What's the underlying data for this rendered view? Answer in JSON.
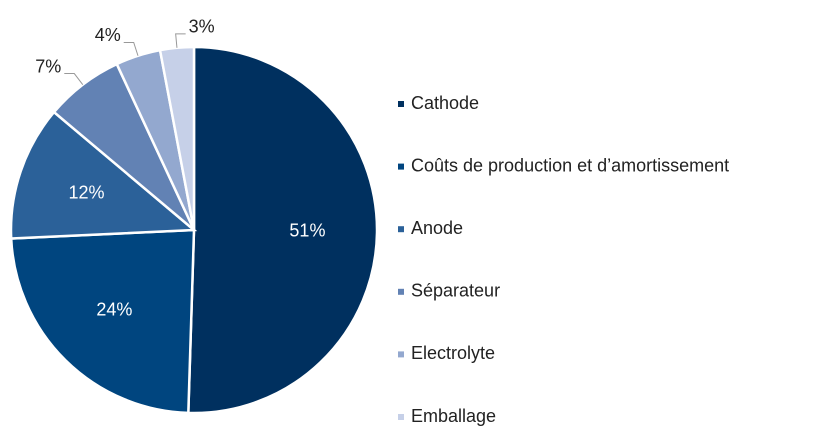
{
  "chart_data": {
    "type": "pie",
    "categories": [
      "Cathode",
      "Coûts de production et d’amortissement",
      "Anode",
      "Séparateur",
      "Electrolyte",
      "Emballage"
    ],
    "values": [
      51,
      24,
      12,
      7,
      4,
      3
    ],
    "value_labels": [
      "51%",
      "24%",
      "12%",
      "7%",
      "4%",
      "3%"
    ],
    "colors": [
      "#00305f",
      "#00457f",
      "#2b6199",
      "#6282b4",
      "#93a8cf",
      "#c6d0e8"
    ]
  }
}
